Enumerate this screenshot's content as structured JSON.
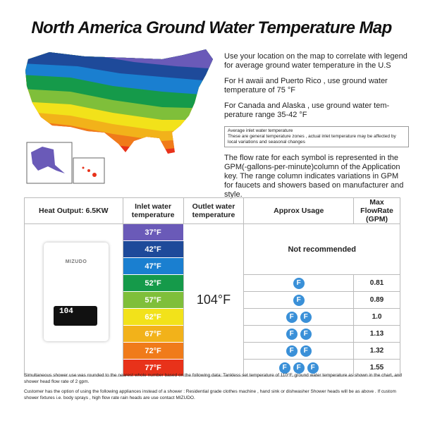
{
  "title": "North America Ground Water Temperature Map",
  "info": [
    "Use your location on the map to correlate with legend for average ground water temperature in the U.S",
    "For H awaii and Puerto Rico , use ground water temperature of 75 °F",
    "For Canada and Alaska , use ground water tem-perature range 35-42 °F"
  ],
  "note": [
    "Average inlet water temperature",
    "These are general temperature zones , actual inlet temperature may be affected by local variations and seasonal changes"
  ],
  "flow_text": "The flow rate for each symbol is represented in the GPM(-gallons-per-minute)column of the Application key. The range column indicates variations in GPM for faucets and showers based on manufacturer and style.",
  "table": {
    "headers": [
      "Heat Output: 6.5KW",
      "Inlet water temperature",
      "Outlet water temperature",
      "Approx Usage",
      "Max FlowRate (GPM)"
    ],
    "outlet": "104°F",
    "not_recommended": "Not recommended",
    "brand": "MIZUDO",
    "display": "104",
    "rows": [
      {
        "temp": "37°F",
        "color": "#6a5ab8",
        "icons": 0,
        "flow": ""
      },
      {
        "temp": "42°F",
        "color": "#1e4a9a",
        "icons": 0,
        "flow": ""
      },
      {
        "temp": "47°F",
        "color": "#1a7fd0",
        "icons": 0,
        "flow": ""
      },
      {
        "temp": "52°F",
        "color": "#159a4a",
        "icons": 1,
        "flow": "0.81"
      },
      {
        "temp": "57°F",
        "color": "#7fbf3a",
        "icons": 1,
        "flow": "0.89"
      },
      {
        "temp": "62°F",
        "color": "#f2e21a",
        "icons": 2,
        "flow": "1.0"
      },
      {
        "temp": "67°F",
        "color": "#f2b21a",
        "icons": 2,
        "flow": "1.13"
      },
      {
        "temp": "72°F",
        "color": "#f07b1a",
        "icons": 2,
        "flow": "1.32"
      },
      {
        "temp": "77°F",
        "color": "#e8321a",
        "icons": 3,
        "flow": "1.55"
      }
    ],
    "icon_letter": "F"
  },
  "footer": [
    "Simultaneous shower use was rounded to the nearest whole number based on the following data: Tankless set temperature of 110°F, ground water temperature as shown in the chart, and shower head flow rate of 2 gpm.",
    "Customer has the option of using the following appliances instead of a shower : Residential grade clothes machine , hand sink or dishwasher Shower heads will be as above . If custom shower fixtures i.e. body sprays , high flow rate rain heads are use contact MIZUDO."
  ]
}
